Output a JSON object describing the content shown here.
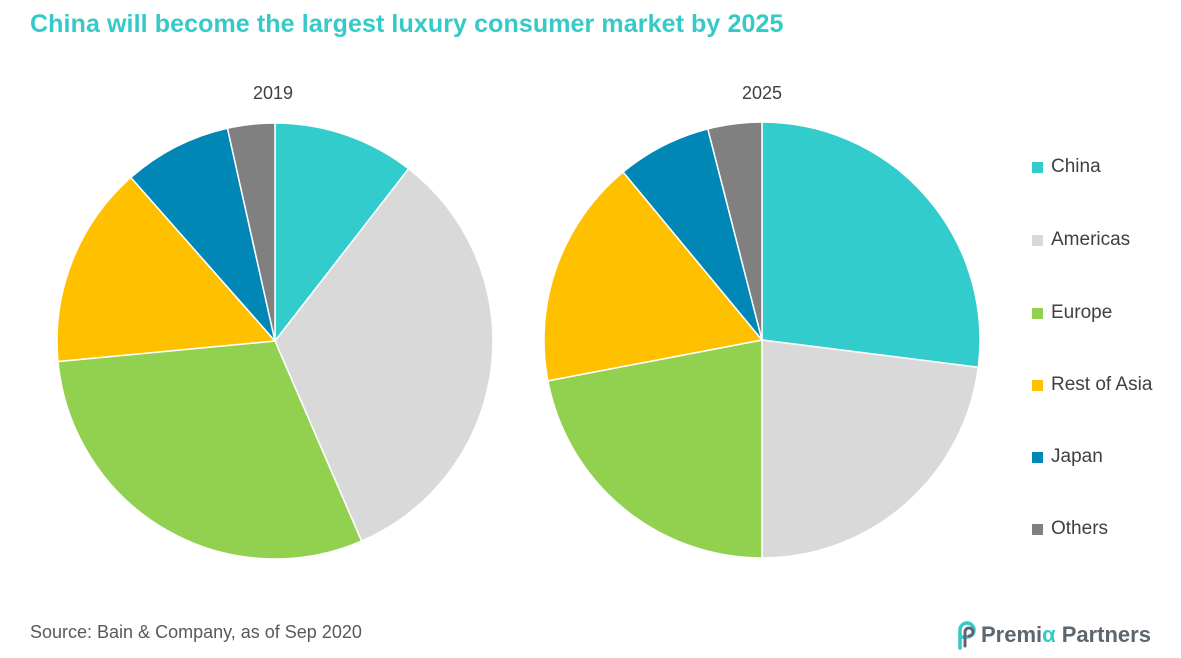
{
  "header": {
    "title": "China will become the largest luxury consumer market by 2025"
  },
  "chart_data": [
    {
      "type": "pie",
      "title": "2019",
      "categories": [
        "China",
        "Americas",
        "Europe",
        "Rest of Asia",
        "Japan",
        "Others"
      ],
      "values": [
        10.5,
        33,
        30,
        15,
        8,
        3.5
      ]
    },
    {
      "type": "pie",
      "title": "2025",
      "categories": [
        "China",
        "Americas",
        "Europe",
        "Rest of Asia",
        "Japan",
        "Others"
      ],
      "values": [
        27,
        23,
        22,
        17,
        7,
        4
      ]
    }
  ],
  "legend": {
    "placement": "right",
    "items": [
      {
        "label": "China",
        "color": "#33cccc"
      },
      {
        "label": "Americas",
        "color": "#d9d9d9"
      },
      {
        "label": "Europe",
        "color": "#92d050"
      },
      {
        "label": "Rest of Asia",
        "color": "#ffc000"
      },
      {
        "label": "Japan",
        "color": "#0087b6"
      },
      {
        "label": "Others",
        "color": "#808080"
      }
    ]
  },
  "footer": {
    "source": "Source: Bain & Company, as of Sep 2020",
    "brand_name_1": "Premi",
    "brand_alpha": "α",
    "brand_name_2": "Partners",
    "brand_accent": "#35c9c7"
  }
}
